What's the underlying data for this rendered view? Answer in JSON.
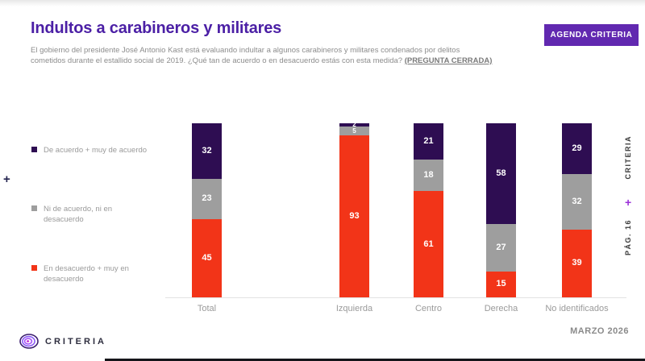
{
  "header": {
    "title": "Indultos a carabineros y militares",
    "subtitle_line1": "El gobierno del presidente José Antonio Kast está evaluando indultar a algunos carabineros y militares condenados por delitos",
    "subtitle_line2": "cometidos durante el estallido social de 2019. ¿Qué tan de acuerdo o en desacuerdo estás con esta medida? ",
    "subtitle_highlight": "(PREGUNTA CERRADA)",
    "agenda_button_label": "AGENDA CRITERIA"
  },
  "legend": {
    "items": [
      {
        "line1": "De acuerdo + muy de acuerdo",
        "line2": "",
        "color": "#2E0D52"
      },
      {
        "line1": "Ni de acuerdo, ni en",
        "line2": "desacuerdo",
        "color": "#9E9E9E"
      },
      {
        "line1": "En desacuerdo + muy en",
        "line2": "desacuerdo",
        "color": "#F23418"
      }
    ]
  },
  "chart_data": {
    "type": "bar",
    "subtype": "stacked-vertical-100pct",
    "categories": [
      "Total",
      "Izquierda",
      "Centro",
      "Derecha",
      "No identificados"
    ],
    "series": [
      {
        "name": "De acuerdo + muy de acuerdo",
        "color": "#2E0D52",
        "values": [
          32,
          2,
          21,
          58,
          29
        ]
      },
      {
        "name": "Ni de acuerdo, ni en desacuerdo",
        "color": "#9E9E9E",
        "values": [
          23,
          5,
          18,
          27,
          32
        ]
      },
      {
        "name": "En desacuerdo + muy en desacuerdo",
        "color": "#F23418",
        "values": [
          45,
          93,
          61,
          15,
          39
        ]
      }
    ],
    "unit": "percent",
    "ylim": [
      0,
      100
    ],
    "grid": false,
    "legend_position": "left",
    "title": "Indultos a carabineros y militares"
  },
  "rail": {
    "brand": "CRITERIA",
    "page": "PÁG. 16",
    "plus_left": "+",
    "plus_right": "+"
  },
  "footer": {
    "logo_text": "CRITERIA",
    "date": "MARZO 2026"
  },
  "colors": {
    "title_purple": "#4B1FA5",
    "button_purple": "#6128B0",
    "agree_dark_purple": "#2E0D52",
    "neutral_gray": "#9E9E9E",
    "disagree_red": "#F23418",
    "plus_right_purple": "#9B30D9"
  }
}
